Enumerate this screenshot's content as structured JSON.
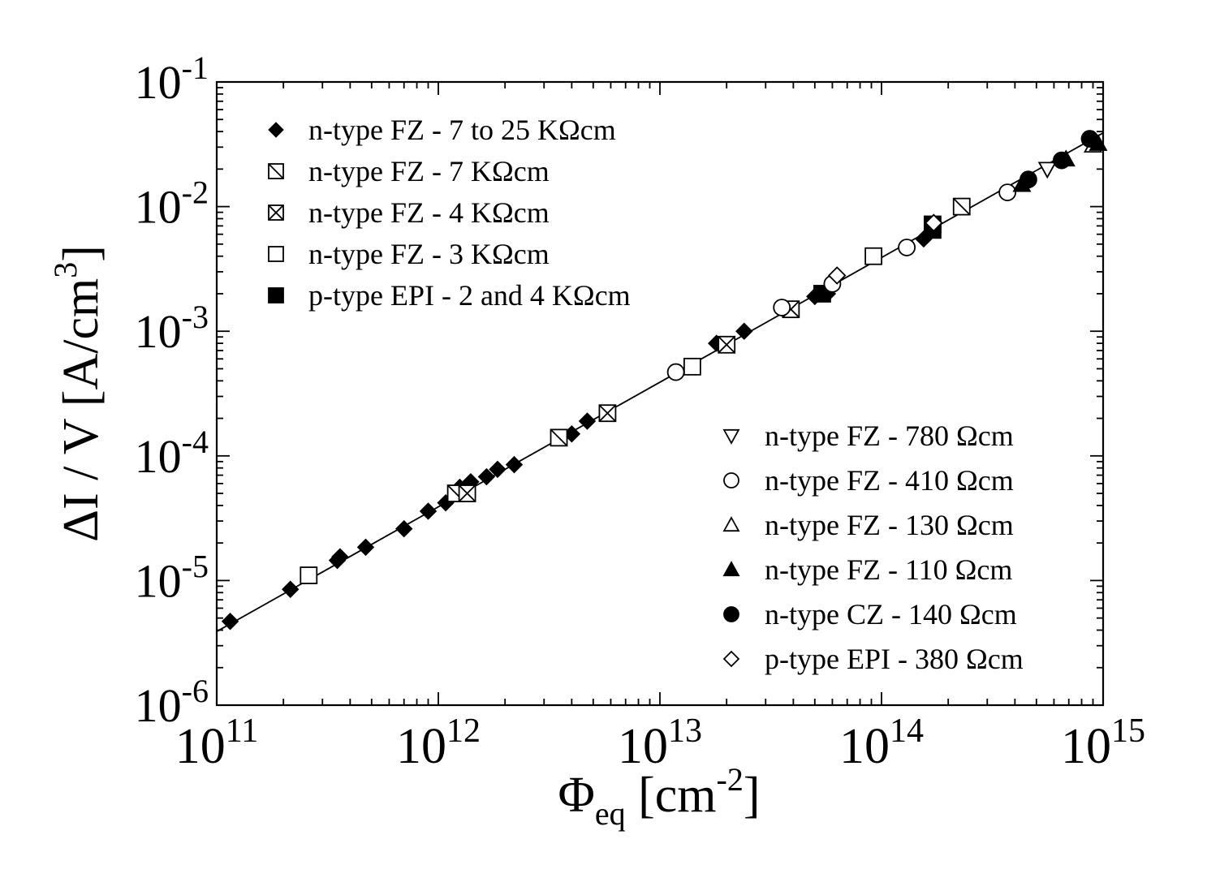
{
  "chart_data": {
    "type": "scatter",
    "title": "",
    "xlabel": {
      "main": "Φ",
      "sub": "eq",
      "unit_open": " [cm",
      "unit_sup": "-2",
      "unit_close": "]"
    },
    "ylabel": {
      "main": "ΔI / V  [A/cm",
      "sup": "3",
      "close": "]"
    },
    "xscale": "log",
    "yscale": "log",
    "xlim": [
      100000000000.0,
      1000000000000000.0
    ],
    "ylim": [
      1e-06,
      0.1
    ],
    "grid": false,
    "x_ticks": [
      {
        "base": "10",
        "exp": "11",
        "value": 100000000000.0
      },
      {
        "base": "10",
        "exp": "12",
        "value": 1000000000000.0
      },
      {
        "base": "10",
        "exp": "13",
        "value": 10000000000000.0
      },
      {
        "base": "10",
        "exp": "14",
        "value": 100000000000000.0
      },
      {
        "base": "10",
        "exp": "15",
        "value": 1000000000000000.0
      }
    ],
    "y_ticks": [
      {
        "base": "10",
        "exp": "-6",
        "value": 1e-06
      },
      {
        "base": "10",
        "exp": "-5",
        "value": 1e-05
      },
      {
        "base": "10",
        "exp": "-4",
        "value": 0.0001
      },
      {
        "base": "10",
        "exp": "-3",
        "value": 0.001
      },
      {
        "base": "10",
        "exp": "-2",
        "value": 0.01
      },
      {
        "base": "10",
        "exp": "-1",
        "value": 0.1
      }
    ],
    "fit_line": {
      "x": [
        100000000000.0,
        1000000000000000.0
      ],
      "y": [
        3.9e-06,
        0.039
      ]
    },
    "legend_top_left": [
      0,
      1,
      2,
      3,
      4
    ],
    "legend_bottom_right": [
      5,
      6,
      7,
      8,
      9,
      10
    ],
    "series": [
      {
        "name": "n-type FZ - 7 to 25 KΩcm",
        "marker": "diamond-filled",
        "x": [
          115000000000.0,
          215000000000.0,
          350000000000.0,
          360000000000.0,
          470000000000.0,
          700000000000.0,
          900000000000.0,
          1080000000000.0,
          1250000000000.0,
          1400000000000.0,
          1650000000000.0,
          1850000000000.0,
          2200000000000.0,
          4000000000000.0,
          4700000000000.0,
          18000000000000.0,
          24000000000000.0,
          50000000000000.0,
          57000000000000.0,
          62000000000000.0,
          155000000000000.0
        ],
        "y": [
          4.7e-06,
          8.5e-06,
          1.45e-05,
          1.55e-05,
          1.85e-05,
          2.6e-05,
          3.6e-05,
          4.2e-05,
          5.6e-05,
          6.2e-05,
          6.8e-05,
          7.8e-05,
          8.5e-05,
          0.00015,
          0.00019,
          0.0008,
          0.001,
          0.0019,
          0.002,
          0.0027,
          0.0055
        ]
      },
      {
        "name": "n-type FZ - 7 KΩcm",
        "marker": "square-slash",
        "x": [
          1200000000000.0,
          3500000000000.0,
          230000000000000.0
        ],
        "y": [
          5e-05,
          0.00014,
          0.01
        ]
      },
      {
        "name": "n-type FZ - 4 KΩcm",
        "marker": "square-cross",
        "x": [
          1350000000000.0,
          5800000000000.0,
          20000000000000.0,
          39000000000000.0
        ],
        "y": [
          5e-05,
          0.00022,
          0.00078,
          0.0015
        ]
      },
      {
        "name": "n-type FZ - 3 KΩcm",
        "marker": "square-open",
        "x": [
          260000000000.0,
          14000000000000.0,
          92000000000000.0
        ],
        "y": [
          1.1e-05,
          0.00052,
          0.004
        ]
      },
      {
        "name": "p-type EPI - 2 and 4 KΩcm",
        "marker": "square-filled",
        "x": [
          54000000000000.0,
          170000000000000.0,
          170000000000000.0
        ],
        "y": [
          0.002,
          0.0065,
          0.0072
        ]
      },
      {
        "name": "n-type FZ - 780 Ωcm",
        "marker": "triangle-down-open",
        "x": [
          560000000000000.0
        ],
        "y": [
          0.02
        ]
      },
      {
        "name": "n-type FZ - 410 Ωcm",
        "marker": "circle-open",
        "x": [
          11800000000000.0,
          35500000000000.0,
          60000000000000.0,
          130000000000000.0,
          370000000000000.0
        ],
        "y": [
          0.00047,
          0.00155,
          0.0024,
          0.0047,
          0.013
        ]
      },
      {
        "name": "n-type FZ - 130 Ωcm",
        "marker": "triangle-up-open",
        "x": [
          900000000000000.0
        ],
        "y": [
          0.031
        ]
      },
      {
        "name": "n-type FZ - 110 Ωcm",
        "marker": "triangle-up-filled",
        "x": [
          430000000000000.0,
          680000000000000.0,
          950000000000000.0
        ],
        "y": [
          0.015,
          0.024,
          0.032
        ]
      },
      {
        "name": "n-type CZ - 140 Ωcm",
        "marker": "circle-filled",
        "x": [
          460000000000000.0,
          650000000000000.0,
          870000000000000.0
        ],
        "y": [
          0.0165,
          0.0235,
          0.035
        ]
      },
      {
        "name": "p-type EPI - 380 Ωcm",
        "marker": "diamond-open",
        "x": [
          63000000000000.0,
          172000000000000.0
        ],
        "y": [
          0.0028,
          0.0074
        ]
      }
    ]
  }
}
